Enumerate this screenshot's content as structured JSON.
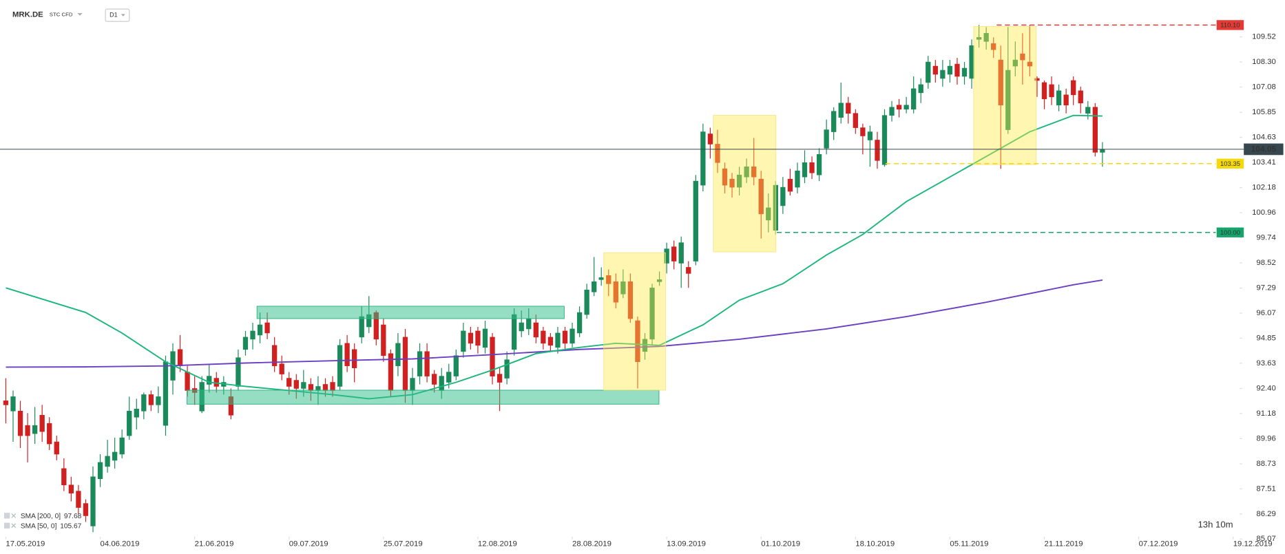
{
  "chart_data": {
    "type": "candlestick",
    "symbol": "MRK.DE",
    "instrument_type": "STC CFD",
    "interval": "D1",
    "countdown": "13h 10m",
    "up_color": "#1b8a5a",
    "down_color": "#d0201f",
    "xlim": [
      -0.8,
      169.9
    ],
    "xticks": [
      {
        "value": 0,
        "label": "17.05.2019"
      },
      {
        "value": 13,
        "label": "04.06.2019"
      },
      {
        "value": 26,
        "label": "21.06.2019"
      },
      {
        "value": 39,
        "label": "09.07.2019"
      },
      {
        "value": 52,
        "label": "25.07.2019"
      },
      {
        "value": 65,
        "label": "12.08.2019"
      },
      {
        "value": 78,
        "label": "28.08.2019"
      },
      {
        "value": 91,
        "label": "13.09.2019"
      },
      {
        "value": 104,
        "label": "01.10.2019"
      },
      {
        "value": 117,
        "label": "18.10.2019"
      },
      {
        "value": 130,
        "label": "05.11.2019"
      },
      {
        "value": 143,
        "label": "21.11.2019"
      },
      {
        "value": 156,
        "label": "07.12.2019"
      },
      {
        "value": 169,
        "label": "19.12.2019"
      }
    ],
    "ylim": [
      85.18,
      111.32
    ],
    "yticks": [
      109.52,
      {
        "value": 108.3,
        "label": "108.30"
      },
      107.08,
      105.85,
      104.63,
      103.41,
      102.18,
      100.96,
      99.74,
      98.52,
      97.29,
      96.07,
      94.85,
      93.63,
      {
        "value": 92.4,
        "label": "92.40"
      },
      91.18,
      89.96,
      88.73,
      87.51,
      86.29,
      85.07
    ],
    "open": [
      91.8,
      91.3,
      91.3,
      90.6,
      90.2,
      91.1,
      90.7,
      89.8,
      88.5,
      87.7,
      87.4,
      86.8,
      85.7,
      88.0,
      88.6,
      88.9,
      89.2,
      90.1,
      91.0,
      91.3,
      92.1,
      91.6,
      90.6,
      92.8,
      94.3,
      93.2,
      92.4,
      91.3,
      92.6,
      92.9,
      92.5,
      92.0,
      92.5,
      94.3,
      94.8,
      95.0,
      95.6,
      94.5,
      93.6,
      92.9,
      92.8,
      92.4,
      92.6,
      92.3,
      92.6,
      92.7,
      92.5,
      94.6,
      94.3,
      94.9,
      95.4,
      96.1,
      95.5,
      94.1,
      93.5,
      94.9,
      92.3,
      93.0,
      94.2,
      93.1,
      92.3,
      92.7,
      93.0,
      94.2,
      95.1,
      95.2,
      94.4,
      94.9,
      93.1,
      92.9,
      94.3,
      95.2,
      95.3,
      95.6,
      95.2,
      94.9,
      94.4,
      95.2,
      94.6,
      95.1,
      96.0,
      97.1,
      97.7,
      97.9,
      97.6,
      97.0,
      97.6,
      95.7,
      94.2,
      94.8,
      97.6,
      98.5,
      99.3,
      98.5,
      98.3,
      98.6,
      102.3,
      104.8,
      104.3,
      103.1,
      102.6,
      102.2,
      102.7,
      103.2,
      102.6,
      100.6,
      100.1,
      101.3,
      102.6,
      102.2,
      102.7,
      103.4,
      102.8,
      104.1,
      104.9,
      105.6,
      106.3,
      105.8,
      105.1,
      104.5,
      104.5,
      103.3,
      105.7,
      106.2,
      106.0,
      106.0,
      106.8,
      107.3,
      108.1,
      107.5,
      107.7,
      108.2,
      107.6,
      107.5,
      109.4,
      109.3,
      109.2,
      108.4,
      105.0,
      108.1,
      108.7,
      108.3,
      107.5,
      107.3,
      107.2,
      106.2,
      106.7,
      107.4,
      106.9,
      105.8,
      106.1,
      103.9
    ],
    "high": [
      92.9,
      92.3,
      91.8,
      91.2,
      91.5,
      91.6,
      91.0,
      90.1,
      89.0,
      88.1,
      87.7,
      87.0,
      88.6,
      89.2,
      89.9,
      90.0,
      90.4,
      92.0,
      91.9,
      92.2,
      92.3,
      92.5,
      94.0,
      94.6,
      95.0,
      93.5,
      93.0,
      93.0,
      93.6,
      93.2,
      93.0,
      92.4,
      94.3,
      95.2,
      95.6,
      96.1,
      96.1,
      94.9,
      94.0,
      93.2,
      93.1,
      93.3,
      92.9,
      93.0,
      92.9,
      93.0,
      94.8,
      95.0,
      94.6,
      96.4,
      96.9,
      96.2,
      95.8,
      94.3,
      95.1,
      95.3,
      93.4,
      94.6,
      94.6,
      93.3,
      93.4,
      93.6,
      94.3,
      95.6,
      95.4,
      95.4,
      95.7,
      95.1,
      93.4,
      94.2,
      96.3,
      96.2,
      96.3,
      96.0,
      95.4,
      95.1,
      95.4,
      95.4,
      95.6,
      96.4,
      97.5,
      98.8,
      98.3,
      98.2,
      98.0,
      98.2,
      98.0,
      95.9,
      95.1,
      97.5,
      98.1,
      99.5,
      99.6,
      99.8,
      98.6,
      102.8,
      105.3,
      105.1,
      105.0,
      103.4,
      102.9,
      103.2,
      103.6,
      104.6,
      103.0,
      101.9,
      102.5,
      102.7,
      103.1,
      103.4,
      104.0,
      103.7,
      104.1,
      105.5,
      106.1,
      107.3,
      106.6,
      106.0,
      105.3,
      105.2,
      104.9,
      106.0,
      106.4,
      106.5,
      106.6,
      107.6,
      107.5,
      108.6,
      108.4,
      108.4,
      108.4,
      108.5,
      108.3,
      109.4,
      110.1,
      110.0,
      109.5,
      109.1,
      110.0,
      109.3,
      109.7,
      110.1,
      107.6,
      107.4,
      107.6,
      107.2,
      107.0,
      107.6,
      107.1,
      106.4,
      106.3,
      104.4
    ],
    "low": [
      90.7,
      89.8,
      89.5,
      88.8,
      89.7,
      89.8,
      89.4,
      88.9,
      87.4,
      86.9,
      86.3,
      85.9,
      85.4,
      87.6,
      88.3,
      88.5,
      89.0,
      89.9,
      90.4,
      90.9,
      91.3,
      91.2,
      90.1,
      92.1,
      93.2,
      92.0,
      91.6,
      91.2,
      92.2,
      92.2,
      92.1,
      90.9,
      92.3,
      94.0,
      94.3,
      94.6,
      94.8,
      93.2,
      92.8,
      92.1,
      91.9,
      92.0,
      91.8,
      91.6,
      92.0,
      92.0,
      92.3,
      93.2,
      92.7,
      94.6,
      95.1,
      94.5,
      93.7,
      92.0,
      93.0,
      91.7,
      91.6,
      92.6,
      92.7,
      92.2,
      91.9,
      92.4,
      92.8,
      93.9,
      94.3,
      94.1,
      94.1,
      92.6,
      91.3,
      92.6,
      94.0,
      94.9,
      95.0,
      94.6,
      94.3,
      94.2,
      94.1,
      94.3,
      94.4,
      94.9,
      95.8,
      96.9,
      97.4,
      96.9,
      96.3,
      96.8,
      95.6,
      92.4,
      93.8,
      94.5,
      97.4,
      98.0,
      98.2,
      97.3,
      97.3,
      98.4,
      102.0,
      103.6,
      102.9,
      101.9,
      101.7,
      101.8,
      102.4,
      102.3,
      99.7,
      100.0,
      99.9,
      100.9,
      101.8,
      101.9,
      102.4,
      102.6,
      102.5,
      103.8,
      104.5,
      105.3,
      105.3,
      104.8,
      103.8,
      103.2,
      103.1,
      103.2,
      105.4,
      105.6,
      105.8,
      105.8,
      106.3,
      107.0,
      107.3,
      107.1,
      107.3,
      107.2,
      107.2,
      107.0,
      109.0,
      108.9,
      108.5,
      103.1,
      104.8,
      107.6,
      107.2,
      107.6,
      106.6,
      106.0,
      106.2,
      105.9,
      105.8,
      106.2,
      105.8,
      105.5,
      103.7,
      103.2
    ],
    "close": [
      91.6,
      92.0,
      90.1,
      90.1,
      90.6,
      90.3,
      89.7,
      89.2,
      87.7,
      87.3,
      86.6,
      86.2,
      88.1,
      88.8,
      89.1,
      89.3,
      90.0,
      91.3,
      91.4,
      92.1,
      91.6,
      92.0,
      93.7,
      94.2,
      93.5,
      92.3,
      92.2,
      92.7,
      93.0,
      92.5,
      92.7,
      91.1,
      93.9,
      94.9,
      95.2,
      95.5,
      95.1,
      93.5,
      93.1,
      92.5,
      92.4,
      92.7,
      92.3,
      92.5,
      92.3,
      92.3,
      94.5,
      93.5,
      93.4,
      95.9,
      96.0,
      94.8,
      94.0,
      92.3,
      94.6,
      92.3,
      92.9,
      94.2,
      93.0,
      92.6,
      93.0,
      93.2,
      94.0,
      95.2,
      94.6,
      94.5,
      95.3,
      93.0,
      92.7,
      93.8,
      96.0,
      95.6,
      95.8,
      94.9,
      94.6,
      94.5,
      95.1,
      94.6,
      95.3,
      96.1,
      97.2,
      97.6,
      97.8,
      97.5,
      96.6,
      97.6,
      95.8,
      93.7,
      94.8,
      97.3,
      97.7,
      99.2,
      98.6,
      99.5,
      98.0,
      102.5,
      104.9,
      104.3,
      103.4,
      102.3,
      102.2,
      102.8,
      103.2,
      102.7,
      100.9,
      101.2,
      102.3,
      102.2,
      102.0,
      103.0,
      103.4,
      102.9,
      103.8,
      105.0,
      105.9,
      106.3,
      105.8,
      105.1,
      104.7,
      104.9,
      103.5,
      105.7,
      106.1,
      106.0,
      106.2,
      107.0,
      107.2,
      108.3,
      107.7,
      107.9,
      108.1,
      107.6,
      108.0,
      109.1,
      109.5,
      109.7,
      108.9,
      106.2,
      107.9,
      108.4,
      108.4,
      108.1,
      107.4,
      106.5,
      106.6,
      106.9,
      106.2,
      106.7,
      106.3,
      106.1,
      103.9,
      104.05
    ],
    "sma": [
      {
        "name": "SMA [200, 0]",
        "color": "#6a3fc1",
        "x": [
          0,
          11,
          22,
          33,
          45,
          56,
          67,
          79,
          90,
          101,
          113,
          124,
          135,
          147,
          151
        ],
        "values": [
          93.44,
          93.45,
          93.5,
          93.64,
          93.75,
          93.84,
          94.05,
          94.3,
          94.45,
          94.8,
          95.3,
          95.9,
          96.6,
          97.45,
          97.68
        ]
      },
      {
        "name": "SMA [50, 0]",
        "color": "#1bb67c",
        "x": [
          0,
          11,
          16,
          22,
          28,
          33,
          39,
          45,
          50,
          56,
          62,
          67,
          73,
          79,
          84,
          90,
          96,
          101,
          107,
          113,
          118,
          124,
          130,
          135,
          141,
          147,
          151
        ],
        "values": [
          97.3,
          96.1,
          95.1,
          93.7,
          92.7,
          92.5,
          92.3,
          92.1,
          91.9,
          92.1,
          92.7,
          93.3,
          94.1,
          94.4,
          94.6,
          94.5,
          95.5,
          96.7,
          97.5,
          98.9,
          99.9,
          101.5,
          102.7,
          103.7,
          104.9,
          105.7,
          105.67
        ]
      }
    ],
    "levels": [
      {
        "value": 110.1,
        "label": "110.10",
        "color": "#e53935"
      },
      {
        "value": 103.35,
        "color": "#f5d90a"
      },
      {
        "value": 100,
        "label": "100.00",
        "color": "#14a46c"
      }
    ],
    "current_price": 104.05
  }
}
